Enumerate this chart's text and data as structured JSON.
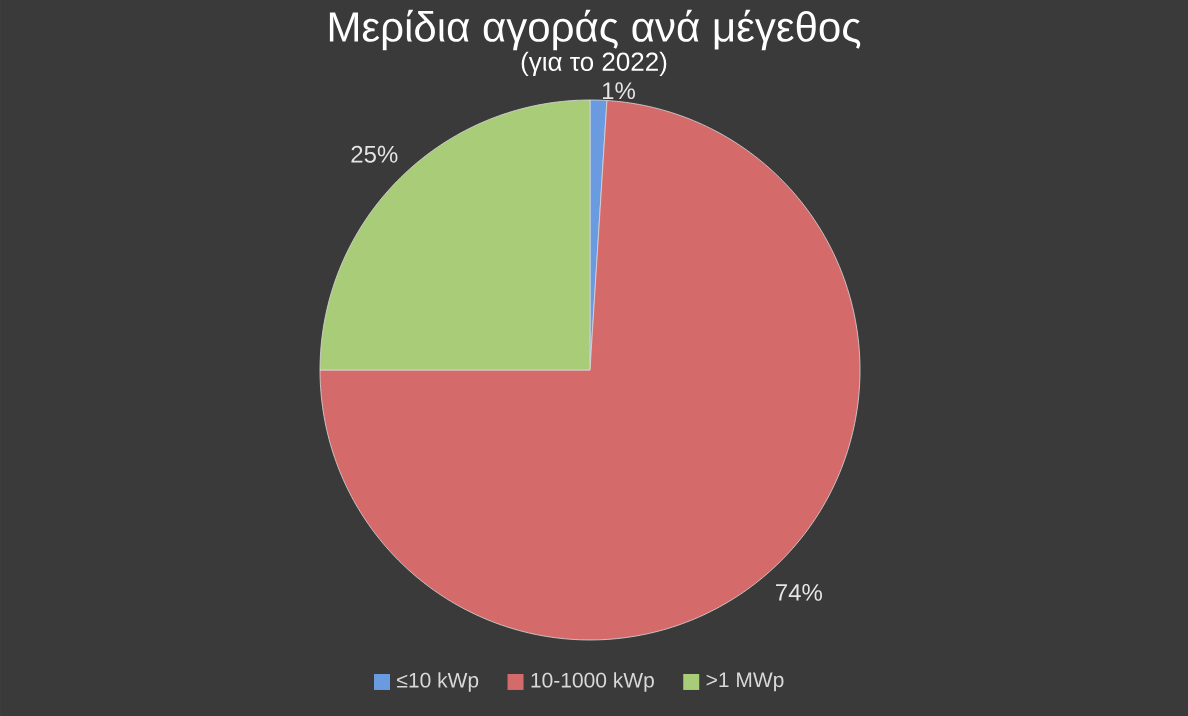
{
  "chart_data": {
    "type": "pie",
    "title": "Μερίδια αγοράς ανά μέγεθος",
    "subtitle": "(για το 2022)",
    "categories": [
      "≤10 kWp",
      "10-1000 kWp",
      ">1 MWp"
    ],
    "values": [
      1,
      74,
      25
    ],
    "value_labels": [
      "1%",
      "74%",
      "25%"
    ],
    "colors": [
      "#6a9be0",
      "#d46a6a",
      "#a9cc79"
    ],
    "legend": "bottom"
  }
}
